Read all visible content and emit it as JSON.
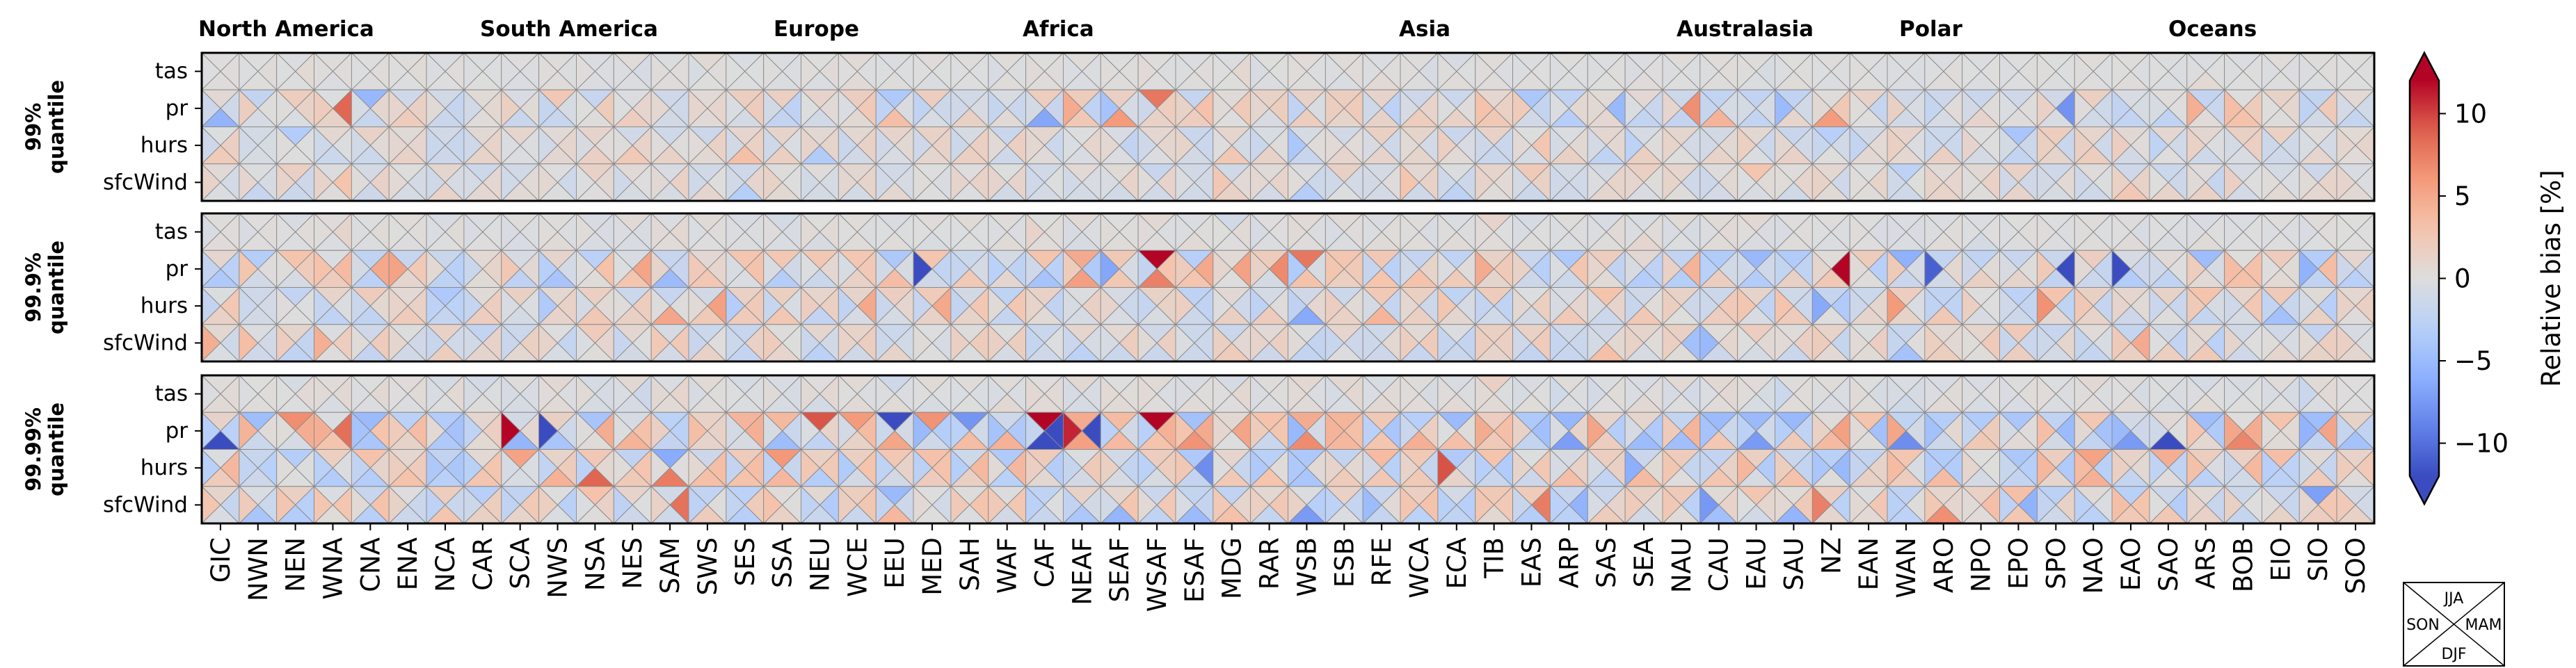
{
  "chart_data": {
    "type": "heatmap",
    "description": "Each cell split into four seasonal triangles",
    "regions": [
      "GIC",
      "NWN",
      "NEN",
      "WNA",
      "CNA",
      "ENA",
      "NCA",
      "CAR",
      "SCA",
      "NWS",
      "NSA",
      "NES",
      "SAM",
      "SWS",
      "SES",
      "SSA",
      "NEU",
      "WCE",
      "EEU",
      "MED",
      "SAH",
      "WAF",
      "CAF",
      "NEAF",
      "SEAF",
      "WSAF",
      "ESAF",
      "MDG",
      "RAR",
      "WSB",
      "ESB",
      "RFE",
      "WCA",
      "ECA",
      "TIB",
      "EAS",
      "ARP",
      "SAS",
      "SEA",
      "NAU",
      "CAU",
      "EAU",
      "SAU",
      "NZ",
      "EAN",
      "WAN",
      "ARO",
      "NPO",
      "EPO",
      "SPO",
      "NAO",
      "EAO",
      "SAO",
      "ARS",
      "BOB",
      "EIO",
      "SIO",
      "SOO"
    ],
    "continent_labels": [
      {
        "label": "North America",
        "start": 0
      },
      {
        "label": "South America",
        "start": 7
      },
      {
        "label": "Europe",
        "start": 15
      },
      {
        "label": "Africa",
        "start": 19
      },
      {
        "label": "Asia",
        "start": 28
      },
      {
        "label": "Australasia",
        "start": 39
      },
      {
        "label": "Polar",
        "start": 44
      },
      {
        "label": "Oceans",
        "start": 50
      }
    ],
    "variables": [
      "tas",
      "pr",
      "hurs",
      "sfcWind"
    ],
    "seasons_order": [
      "DJF",
      "MAM",
      "JJA",
      "SON"
    ],
    "panels": [
      {
        "label": "99%\nquantile",
        "amp": 0.55,
        "seed": 1
      },
      {
        "label": "99.9%\nquantile",
        "amp": 0.85,
        "seed": 2
      },
      {
        "label": "99.99%\nquantile",
        "amp": 1.25,
        "seed": 3
      }
    ],
    "colorbar": {
      "label": "Relative bias [%]",
      "vmin": -12,
      "vmax": 12,
      "ticks": [
        10,
        5,
        0,
        -5,
        -10
      ],
      "tick_labels": [
        "10",
        "5",
        "0",
        "−5",
        "−10"
      ],
      "extend": "both",
      "colormap": "coolwarm"
    },
    "legend": {
      "top": "JJA",
      "right": "MAM",
      "bottom": "DJF",
      "left": "SON"
    }
  }
}
